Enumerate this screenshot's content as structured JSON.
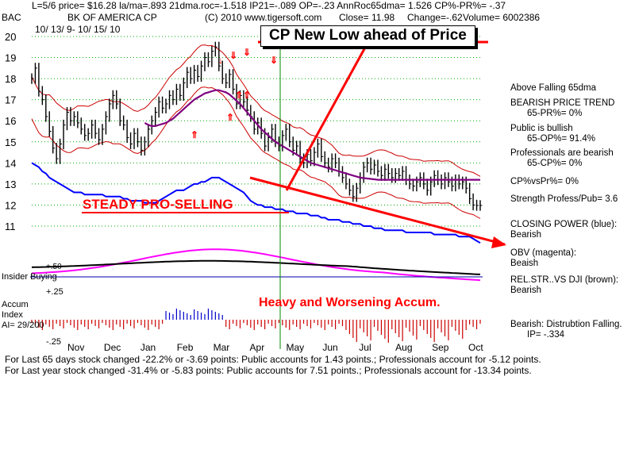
{
  "header": {
    "line1": "L=5/6  price= $16.28  la/ma=.893 21dma.roc=-1.518 IP21=-.089 OP=-.23 AnnRoc65dma= 1.526 CP%-PR%= -.37",
    "ticker": "BAC",
    "company": "BK OF AMERICA CP",
    "copyright": "(C) 2010 www.tigersoft.com",
    "close": "Close=   11.98",
    "change": "Change=-.62",
    "volume": "Volume= 6002386",
    "dates": "10/ 13/ 9-  10/ 15/ 10"
  },
  "annotations": {
    "cp_new_low": "CP New Low ahead of Price",
    "steady_pro_selling": "STEADY PRO-SELLING",
    "heavy_accum": "Heavy and Worsening Accum."
  },
  "left_labels": {
    "insider_buying": "Insider Buying",
    "plus50": "+.50",
    "plus25": "+.25",
    "accum_index_1": "Accum",
    "accum_index_2": "Index",
    "ai": "AI= 29/200",
    "minus25": "-.25"
  },
  "side_panel": {
    "l1": "Above Falling 65dma",
    "l2": "BEARISH PRICE TREND",
    "l3": "65-PR%= 0%",
    "l4": "Public is bullish",
    "l5": "65-OP%= 91.4%",
    "l6": "Professionals are bearish",
    "l7": "65-CP%= 0%",
    "l8": "CP%vsPr%=  0%",
    "l9": "Strength Profess/Pub= 3.6",
    "l10": "CLOSING POWER (blue):",
    "l11": "Bearish",
    "l12": "OBV (magenta):",
    "l13": "Beaish",
    "l14": "REL.STR..VS DJI (brown):",
    "l15": "Bearish",
    "l16": "Bearish: Distrubtion Falling.",
    "l17": "IP= -.334"
  },
  "footer": {
    "line1": "For Last 65 days stock changed -22.2% or -3.69 points:  Public accounts for  1.43 points.;  Professionals account for -5.12 points.",
    "line2": "For Last year stock changed -31.4% or -5.83 points:  Public accounts for  7.51 points.;  Professionals account for -13.34 points."
  },
  "colors": {
    "price_bars": "#000000",
    "bands": "#cc0000",
    "ma65": "#800080",
    "closing_power": "#0000ff",
    "obv": "#ff00ff",
    "relstr": "#000000",
    "accum_neg": "#cc0000",
    "accum_pos": "#0000cc",
    "grid": "#00aa00",
    "annotation": "#ff0000"
  },
  "chart_data": {
    "type": "line",
    "title": "BK OF AMERICA CP",
    "ylim": [
      10.5,
      20.3
    ],
    "yticks": [
      11,
      12,
      13,
      14,
      15,
      16,
      17,
      18,
      19,
      20
    ],
    "months": [
      "Nov",
      "Dec",
      "Jan",
      "Feb",
      "Mar",
      "Apr",
      "May",
      "Jun",
      "Jul",
      "Aug",
      "Sep",
      "Oct"
    ],
    "price_x": [
      0,
      2,
      4,
      6,
      8,
      10,
      12,
      14,
      16,
      18,
      20,
      22,
      24,
      26,
      28,
      30,
      32,
      34,
      36,
      38,
      40,
      42,
      44,
      46,
      48,
      50,
      52,
      54,
      56,
      58,
      60,
      62,
      64,
      66,
      68,
      70,
      72,
      74,
      76,
      78,
      80,
      82,
      84,
      86,
      88,
      90,
      92,
      94,
      96,
      98,
      100,
      102,
      104,
      106,
      108,
      110,
      112,
      114,
      116,
      118,
      120,
      122,
      124,
      126,
      128,
      130,
      132,
      134,
      136,
      138,
      140,
      142,
      144,
      146,
      148,
      150,
      152,
      154,
      156,
      158,
      160,
      162,
      164,
      166,
      168,
      170,
      172,
      174,
      176,
      178,
      180,
      182,
      184,
      186,
      188,
      190,
      192,
      194,
      196,
      198,
      200,
      202,
      204,
      206,
      208,
      210,
      212,
      214,
      216,
      218,
      220,
      222,
      224,
      226,
      228,
      230,
      232,
      234,
      236,
      238,
      240,
      242,
      244,
      246,
      248,
      250,
      252,
      254
    ],
    "price_close": [
      18.0,
      18.5,
      17.4,
      17.0,
      16.2,
      15.5,
      14.7,
      14.2,
      14.9,
      15.8,
      16.4,
      16.0,
      16.2,
      15.9,
      15.6,
      15.3,
      15.4,
      15.8,
      15.4,
      15.1,
      15.6,
      16.2,
      16.8,
      17.2,
      16.8,
      16.0,
      15.8,
      15.2,
      14.9,
      15.4,
      15.0,
      14.6,
      15.0,
      15.6,
      16.0,
      16.4,
      16.9,
      16.6,
      16.8,
      17.2,
      17.0,
      17.5,
      17.2,
      17.8,
      18.3,
      18.0,
      18.4,
      18.1,
      18.6,
      19.0,
      18.8,
      19.3,
      19.5,
      18.6,
      18.0,
      17.8,
      18.2,
      17.5,
      16.8,
      17.2,
      16.9,
      16.5,
      16.2,
      15.6,
      15.9,
      15.4,
      14.8,
      15.2,
      15.6,
      15.0,
      14.8,
      15.3,
      15.6,
      15.0,
      14.6,
      14.8,
      14.2,
      14.0,
      14.4,
      14.1,
      14.5,
      14.9,
      14.3,
      14.0,
      13.8,
      14.2,
      14.0,
      13.6,
      13.3,
      13.0,
      12.7,
      12.4,
      12.8,
      13.3,
      13.8,
      14.0,
      13.7,
      13.9,
      13.6,
      13.4,
      13.7,
      13.5,
      13.3,
      13.5,
      13.4,
      13.6,
      13.2,
      13.0,
      12.9,
      13.1,
      13.3,
      13.0,
      12.7,
      13.1,
      13.4,
      13.2,
      13.0,
      13.3,
      13.1,
      12.9,
      13.2,
      13.0,
      13.1,
      12.8,
      12.3,
      12.0,
      11.98,
      11.98
    ],
    "ma65": [
      null,
      null,
      null,
      null,
      null,
      null,
      null,
      null,
      null,
      null,
      null,
      null,
      null,
      null,
      null,
      null,
      null,
      null,
      null,
      null,
      null,
      null,
      null,
      null,
      null,
      null,
      null,
      null,
      null,
      null,
      null,
      null,
      15.9,
      15.8,
      15.75,
      15.75,
      15.8,
      15.85,
      15.9,
      16.0,
      16.1,
      16.25,
      16.4,
      16.55,
      16.7,
      16.85,
      17.0,
      17.1,
      17.2,
      17.3,
      17.35,
      17.4,
      17.45,
      17.45,
      17.4,
      17.35,
      17.25,
      17.1,
      16.95,
      16.8,
      16.6,
      16.4,
      16.2,
      16.0,
      15.8,
      15.6,
      15.45,
      15.3,
      15.15,
      15.0,
      14.9,
      14.8,
      14.7,
      14.6,
      14.5,
      14.4,
      14.3,
      14.2,
      14.1,
      14.0,
      13.95,
      13.9,
      13.85,
      13.8,
      13.75,
      13.7,
      13.65,
      13.6,
      13.55,
      13.5,
      13.45,
      13.4,
      13.35,
      13.3,
      13.28,
      13.26,
      13.24,
      13.22,
      13.2,
      13.2,
      13.2,
      13.2,
      13.2,
      13.2,
      13.2,
      13.2,
      13.2,
      13.2,
      13.2,
      13.2,
      13.2,
      13.2,
      13.2,
      13.2,
      13.2,
      13.2,
      13.2,
      13.2,
      13.2,
      13.2,
      13.2,
      13.2,
      13.2,
      13.2,
      13.2,
      13.2,
      13.2,
      13.2
    ],
    "closing_power": [
      14.0,
      13.9,
      13.8,
      13.6,
      13.5,
      13.3,
      13.2,
      13.1,
      13.0,
      12.9,
      12.8,
      12.7,
      12.6,
      12.6,
      12.6,
      12.5,
      12.5,
      12.5,
      12.5,
      12.5,
      12.5,
      12.4,
      12.4,
      12.4,
      12.4,
      12.4,
      12.3,
      12.3,
      12.2,
      12.2,
      12.2,
      12.2,
      12.1,
      12.1,
      12.1,
      12.1,
      12.2,
      12.3,
      12.4,
      12.5,
      12.6,
      12.7,
      12.7,
      12.7,
      12.8,
      12.9,
      13.0,
      13.0,
      13.1,
      13.1,
      13.2,
      13.3,
      13.3,
      13.3,
      13.2,
      13.1,
      13.0,
      12.9,
      12.8,
      12.7,
      12.6,
      12.4,
      12.2,
      12.1,
      12.0,
      12.0,
      11.9,
      11.9,
      11.9,
      11.8,
      11.8,
      11.8,
      11.7,
      11.7,
      11.7,
      11.6,
      11.6,
      11.6,
      11.6,
      11.5,
      11.5,
      11.5,
      11.4,
      11.4,
      11.3,
      11.3,
      11.3,
      11.3,
      11.2,
      11.2,
      11.2,
      11.1,
      11.1,
      11.1,
      11.0,
      11.0,
      11.0,
      10.9,
      10.9,
      10.9,
      10.8,
      10.8,
      10.8,
      10.8,
      10.8,
      10.8,
      10.7,
      10.7,
      10.7,
      10.7,
      10.7,
      10.7,
      10.7,
      10.7,
      10.6,
      10.6,
      10.6,
      10.6,
      10.6,
      10.6,
      10.6,
      10.5,
      10.5,
      10.5,
      10.5,
      10.4,
      10.3,
      10.2
    ]
  }
}
